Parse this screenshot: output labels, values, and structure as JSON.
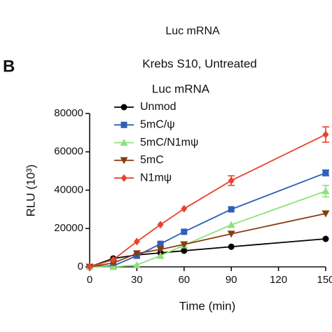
{
  "top_label": "Luc mRNA",
  "panel_label": "B",
  "chart_data": {
    "type": "line",
    "title": "Krebs S10, Untreated",
    "subtitle": "Luc mRNA",
    "x_label": "Time (min)",
    "y_label": "RLU (10³)",
    "x": [
      0,
      15,
      30,
      45,
      60,
      90,
      150
    ],
    "xlim": [
      0,
      150
    ],
    "xticks": [
      0,
      30,
      60,
      90,
      120,
      150
    ],
    "ylim": [
      0,
      80000
    ],
    "yticks": [
      0,
      20000,
      40000,
      60000,
      80000
    ],
    "grid": false,
    "legend": "upper-left",
    "series": [
      {
        "name": "Unmod",
        "color": "#000000",
        "marker": "circle",
        "values": [
          0,
          4400,
          6200,
          7300,
          8400,
          10500,
          14600
        ],
        "errors": [
          null,
          null,
          null,
          null,
          null,
          null,
          null
        ]
      },
      {
        "name": "5mC/ψ",
        "color": "#2f5fb8",
        "marker": "square",
        "values": [
          0,
          500,
          5800,
          12000,
          18300,
          30000,
          49000
        ],
        "errors": [
          null,
          null,
          null,
          null,
          null,
          null,
          1500
        ]
      },
      {
        "name": "5mC/N1mψ",
        "color": "#8ee07a",
        "marker": "triangle-up",
        "values": [
          0,
          0,
          1000,
          5800,
          11300,
          21900,
          39500
        ],
        "errors": [
          null,
          null,
          null,
          null,
          null,
          null,
          3000
        ]
      },
      {
        "name": "5mC",
        "color": "#8b3a0e",
        "marker": "triangle-down",
        "values": [
          0,
          2000,
          7000,
          9100,
          11700,
          17200,
          27800
        ],
        "errors": [
          null,
          null,
          null,
          null,
          null,
          null,
          null
        ]
      },
      {
        "name": "N1mψ",
        "color": "#e8432a",
        "marker": "diamond",
        "values": [
          0,
          3700,
          13200,
          22000,
          30300,
          45000,
          69000
        ],
        "errors": [
          null,
          null,
          null,
          null,
          null,
          2500,
          4000
        ]
      }
    ]
  }
}
